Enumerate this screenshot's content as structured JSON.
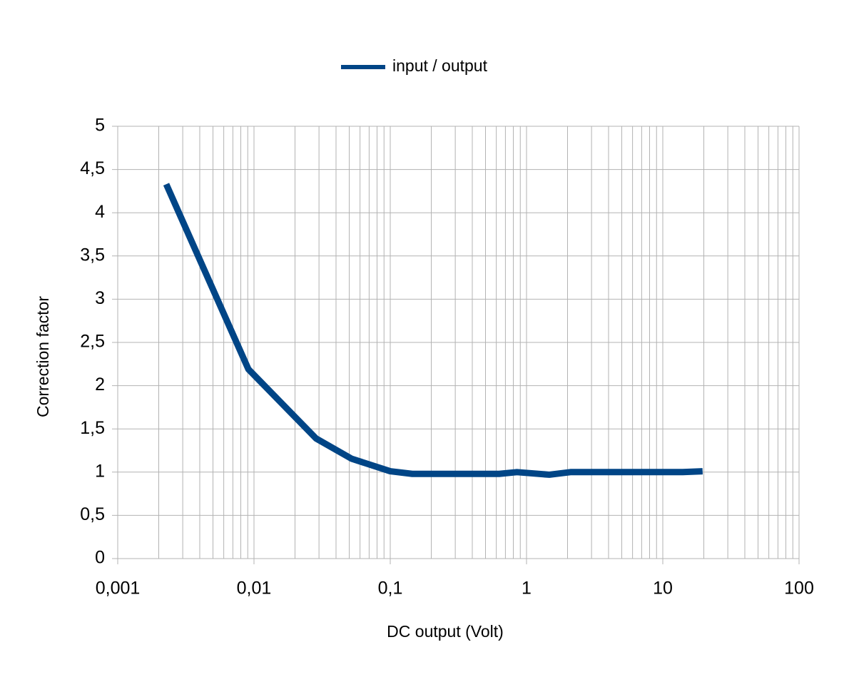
{
  "chart_data": {
    "type": "line",
    "x_label": "DC output (Volt)",
    "y_label": "Correction factor",
    "series": [
      {
        "name": "input / output",
        "color": "#004586",
        "x": [
          0.00227,
          0.0091,
          0.0285,
          0.052,
          0.1,
          0.145,
          0.63,
          0.85,
          1.47,
          2.1,
          14,
          19.6
        ],
        "values": [
          4.33,
          2.19,
          1.39,
          1.155,
          1.01,
          0.98,
          0.98,
          1.0,
          0.97,
          1.0,
          1.0,
          1.01
        ]
      }
    ],
    "xscale": "log",
    "xlim": [
      0.001,
      100
    ],
    "xticks": [
      {
        "value": 0.001,
        "label": "0,001"
      },
      {
        "value": 0.01,
        "label": "0,01"
      },
      {
        "value": 0.1,
        "label": "0,1"
      },
      1,
      10,
      100
    ],
    "xminorticks": [
      0.002,
      0.003,
      0.004,
      0.005,
      0.006,
      0.007,
      0.008,
      0.009,
      0.02,
      0.03,
      0.04,
      0.05,
      0.06,
      0.07,
      0.08,
      0.09,
      0.2,
      0.3,
      0.4,
      0.5,
      0.6,
      0.7,
      0.8,
      0.9,
      2,
      3,
      4,
      5,
      6,
      7,
      8,
      9,
      20,
      30,
      40,
      50,
      60,
      70,
      80,
      90
    ],
    "ylim": [
      0,
      5
    ],
    "yticks": [
      0,
      {
        "value": 0.5,
        "label": "0,5"
      },
      1,
      {
        "value": 1.5,
        "label": "1,5"
      },
      2,
      {
        "value": 2.5,
        "label": "2,5"
      },
      3,
      {
        "value": 3.5,
        "label": "3,5"
      },
      4,
      {
        "value": 4.5,
        "label": "4,5"
      },
      5
    ],
    "grid": true,
    "legend": "top"
  }
}
